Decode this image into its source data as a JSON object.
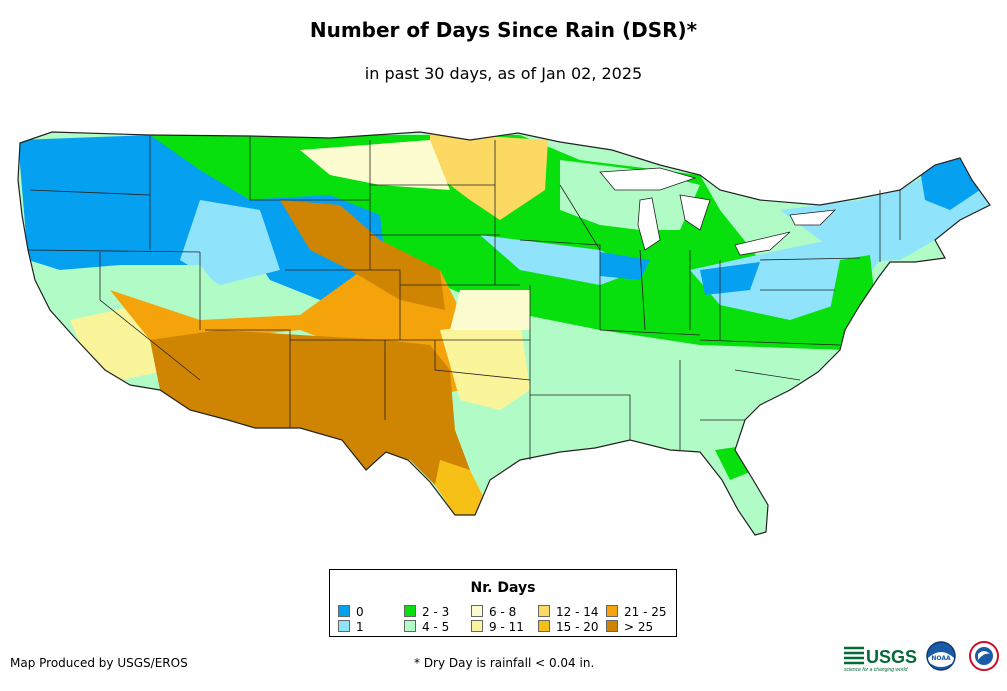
{
  "title": "Number of Days Since Rain (DSR)*",
  "subtitle": "in past 30 days, as of Jan 02, 2025",
  "legend": {
    "title": "Nr. Days",
    "items": [
      {
        "label": "0",
        "color": "#06a0f0"
      },
      {
        "label": "1",
        "color": "#8fe4fb"
      },
      {
        "label": "2 - 3",
        "color": "#07e00d"
      },
      {
        "label": "4 - 5",
        "color": "#b1fcc6"
      },
      {
        "label": "6 - 8",
        "color": "#fdfcd0"
      },
      {
        "label": "9 - 11",
        "color": "#faf59b"
      },
      {
        "label": "12 - 14",
        "color": "#fbd963"
      },
      {
        "label": "15 - 20",
        "color": "#f7c017"
      },
      {
        "label": "21 - 25",
        "color": "#f4a30b"
      },
      {
        "label": "> 25",
        "color": "#d08502"
      }
    ]
  },
  "credit": "Map Produced by USGS/EROS",
  "footnote": "* Dry Day is rainfall < 0.04 in.",
  "logos": {
    "usgs": "USGS",
    "usgs_tagline": "science for a changing world",
    "noaa": "NOAA"
  }
}
